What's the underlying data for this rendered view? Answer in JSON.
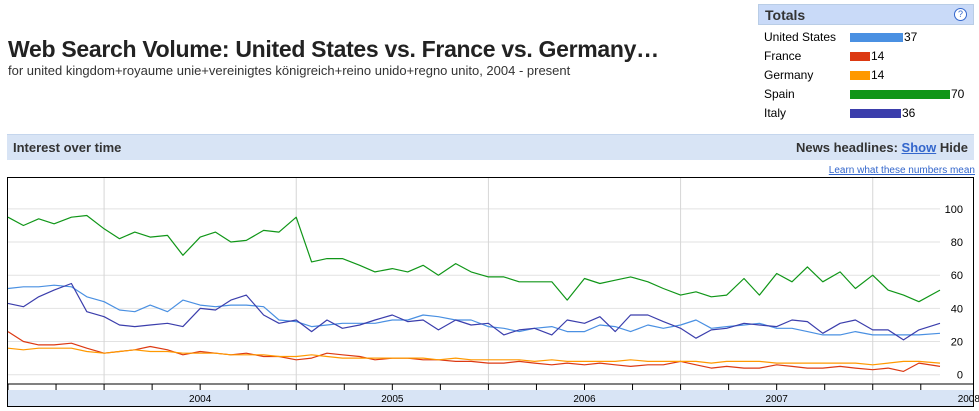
{
  "header": {
    "title": "Web Search Volume: United States vs. France vs. Germany…",
    "subtitle": "for united kingdom+royaume unie+vereinigtes königreich+reino unido+regno unito, 2004 - present"
  },
  "totals": {
    "title": "Totals",
    "help_label": "?",
    "items": [
      {
        "name": "United States",
        "value": 37,
        "color": "#4a90e2"
      },
      {
        "name": "France",
        "value": 14,
        "color": "#dc3912"
      },
      {
        "name": "Germany",
        "value": 14,
        "color": "#ff9900"
      },
      {
        "name": "Spain",
        "value": 70,
        "color": "#109618"
      },
      {
        "name": "Italy",
        "value": 36,
        "color": "#3b3eac"
      }
    ]
  },
  "interest": {
    "title": "Interest over time",
    "news_label": "News headlines:",
    "show_label": "Show",
    "hide_label": "Hide",
    "learn_link": "Learn what these numbers mean"
  },
  "chart_data": {
    "type": "line",
    "xlabel": "",
    "ylabel": "",
    "ylim": [
      -5,
      115
    ],
    "yticks": [
      0,
      20,
      40,
      60,
      80,
      100
    ],
    "xticks": [
      "2004",
      "2005",
      "2006",
      "2007",
      "2008"
    ],
    "x_range": [
      2003.5,
      2008.35
    ],
    "grid": true,
    "series": [
      {
        "name": "Spain",
        "color": "#109618",
        "x": [
          2003.5,
          2003.58,
          2003.66,
          2003.74,
          2003.83,
          2003.91,
          2004.0,
          2004.08,
          2004.16,
          2004.24,
          2004.33,
          2004.41,
          2004.5,
          2004.58,
          2004.66,
          2004.74,
          2004.83,
          2004.91,
          2005.0,
          2005.08,
          2005.16,
          2005.24,
          2005.33,
          2005.41,
          2005.5,
          2005.58,
          2005.66,
          2005.74,
          2005.83,
          2005.91,
          2006.0,
          2006.08,
          2006.16,
          2006.24,
          2006.33,
          2006.41,
          2006.5,
          2006.58,
          2006.66,
          2006.74,
          2006.83,
          2006.91,
          2007.0,
          2007.08,
          2007.16,
          2007.24,
          2007.33,
          2007.41,
          2007.5,
          2007.58,
          2007.66,
          2007.74,
          2007.83,
          2007.91,
          2008.0,
          2008.08,
          2008.16,
          2008.24,
          2008.35
        ],
        "values": [
          95,
          90,
          94,
          91,
          95,
          96,
          88,
          82,
          86,
          83,
          84,
          72,
          83,
          86,
          80,
          81,
          87,
          86,
          95,
          68,
          70,
          70,
          66,
          62,
          64,
          62,
          66,
          60,
          67,
          62,
          59,
          59,
          56,
          56,
          56,
          45,
          58,
          55,
          57,
          59,
          56,
          52,
          48,
          50,
          47,
          48,
          58,
          48,
          61,
          56,
          65,
          56,
          62,
          52,
          60,
          51,
          48,
          44,
          51
        ]
      },
      {
        "name": "United States",
        "color": "#4a90e2",
        "x": [
          2003.5,
          2003.58,
          2003.66,
          2003.74,
          2003.83,
          2003.91,
          2004.0,
          2004.08,
          2004.16,
          2004.24,
          2004.33,
          2004.41,
          2004.5,
          2004.58,
          2004.66,
          2004.74,
          2004.83,
          2004.91,
          2005.0,
          2005.08,
          2005.16,
          2005.24,
          2005.33,
          2005.41,
          2005.5,
          2005.58,
          2005.66,
          2005.74,
          2005.83,
          2005.91,
          2006.0,
          2006.08,
          2006.16,
          2006.24,
          2006.33,
          2006.41,
          2006.5,
          2006.58,
          2006.66,
          2006.74,
          2006.83,
          2006.91,
          2007.0,
          2007.08,
          2007.16,
          2007.24,
          2007.33,
          2007.41,
          2007.5,
          2007.58,
          2007.66,
          2007.74,
          2007.83,
          2007.91,
          2008.0,
          2008.08,
          2008.16,
          2008.24,
          2008.35
        ],
        "values": [
          52,
          53,
          53,
          54,
          53,
          47,
          44,
          39,
          38,
          42,
          38,
          45,
          42,
          41,
          42,
          42,
          41,
          33,
          32,
          29,
          30,
          31,
          31,
          31,
          33,
          33,
          36,
          35,
          33,
          33,
          29,
          28,
          26,
          28,
          29,
          26,
          26,
          30,
          29,
          26,
          30,
          28,
          30,
          33,
          28,
          29,
          30,
          31,
          28,
          28,
          26,
          24,
          24,
          26,
          24,
          24,
          24,
          24,
          25
        ]
      },
      {
        "name": "Italy",
        "color": "#3b3eac",
        "x": [
          2003.5,
          2003.58,
          2003.66,
          2003.74,
          2003.83,
          2003.91,
          2004.0,
          2004.08,
          2004.16,
          2004.24,
          2004.33,
          2004.41,
          2004.5,
          2004.58,
          2004.66,
          2004.74,
          2004.83,
          2004.91,
          2005.0,
          2005.08,
          2005.16,
          2005.24,
          2005.33,
          2005.41,
          2005.5,
          2005.58,
          2005.66,
          2005.74,
          2005.83,
          2005.91,
          2006.0,
          2006.08,
          2006.16,
          2006.24,
          2006.33,
          2006.41,
          2006.5,
          2006.58,
          2006.66,
          2006.74,
          2006.83,
          2006.91,
          2007.0,
          2007.08,
          2007.16,
          2007.24,
          2007.33,
          2007.41,
          2007.5,
          2007.58,
          2007.66,
          2007.74,
          2007.83,
          2007.91,
          2008.0,
          2008.08,
          2008.16,
          2008.24,
          2008.35
        ],
        "values": [
          43,
          41,
          47,
          51,
          55,
          38,
          35,
          30,
          29,
          30,
          31,
          29,
          40,
          39,
          45,
          48,
          36,
          31,
          33,
          26,
          33,
          28,
          30,
          33,
          36,
          32,
          33,
          27,
          33,
          30,
          31,
          24,
          27,
          28,
          24,
          33,
          31,
          35,
          26,
          36,
          36,
          32,
          28,
          22,
          27,
          28,
          31,
          30,
          29,
          33,
          32,
          25,
          31,
          33,
          27,
          27,
          21,
          27,
          31
        ]
      },
      {
        "name": "France",
        "color": "#dc3912",
        "x": [
          2003.5,
          2003.58,
          2003.66,
          2003.74,
          2003.83,
          2003.91,
          2004.0,
          2004.08,
          2004.16,
          2004.24,
          2004.33,
          2004.41,
          2004.5,
          2004.58,
          2004.66,
          2004.74,
          2004.83,
          2004.91,
          2005.0,
          2005.08,
          2005.16,
          2005.24,
          2005.33,
          2005.41,
          2005.5,
          2005.58,
          2005.66,
          2005.74,
          2005.83,
          2005.91,
          2006.0,
          2006.08,
          2006.16,
          2006.24,
          2006.33,
          2006.41,
          2006.5,
          2006.58,
          2006.66,
          2006.74,
          2006.83,
          2006.91,
          2007.0,
          2007.08,
          2007.16,
          2007.24,
          2007.33,
          2007.41,
          2007.5,
          2007.58,
          2007.66,
          2007.74,
          2007.83,
          2007.91,
          2008.0,
          2008.08,
          2008.16,
          2008.24,
          2008.35
        ],
        "values": [
          26,
          20,
          18,
          18,
          19,
          16,
          13,
          14,
          15,
          17,
          15,
          12,
          14,
          13,
          12,
          13,
          11,
          11,
          9,
          10,
          13,
          12,
          11,
          9,
          10,
          10,
          9,
          9,
          8,
          8,
          7,
          7,
          8,
          7,
          6,
          7,
          6,
          7,
          6,
          5,
          6,
          6,
          8,
          6,
          4,
          5,
          4,
          4,
          6,
          5,
          4,
          4,
          5,
          4,
          3,
          4,
          2,
          7,
          5
        ]
      },
      {
        "name": "Germany",
        "color": "#ff9900",
        "x": [
          2003.5,
          2003.58,
          2003.66,
          2003.74,
          2003.83,
          2003.91,
          2004.0,
          2004.08,
          2004.16,
          2004.24,
          2004.33,
          2004.41,
          2004.5,
          2004.58,
          2004.66,
          2004.74,
          2004.83,
          2004.91,
          2005.0,
          2005.08,
          2005.16,
          2005.24,
          2005.33,
          2005.41,
          2005.5,
          2005.58,
          2005.66,
          2005.74,
          2005.83,
          2005.91,
          2006.0,
          2006.08,
          2006.16,
          2006.24,
          2006.33,
          2006.41,
          2006.5,
          2006.58,
          2006.66,
          2006.74,
          2006.83,
          2006.91,
          2007.0,
          2007.08,
          2007.16,
          2007.24,
          2007.33,
          2007.41,
          2007.5,
          2007.58,
          2007.66,
          2007.74,
          2007.83,
          2007.91,
          2008.0,
          2008.08,
          2008.16,
          2008.24,
          2008.35
        ],
        "values": [
          16,
          15,
          16,
          16,
          16,
          14,
          13,
          14,
          15,
          14,
          14,
          13,
          13,
          13,
          12,
          12,
          12,
          11,
          11,
          12,
          11,
          10,
          10,
          10,
          10,
          10,
          10,
          9,
          10,
          9,
          9,
          9,
          9,
          8,
          9,
          8,
          8,
          8,
          8,
          9,
          8,
          8,
          8,
          8,
          7,
          8,
          8,
          8,
          7,
          7,
          7,
          7,
          7,
          7,
          6,
          7,
          8,
          8,
          7
        ]
      }
    ]
  }
}
